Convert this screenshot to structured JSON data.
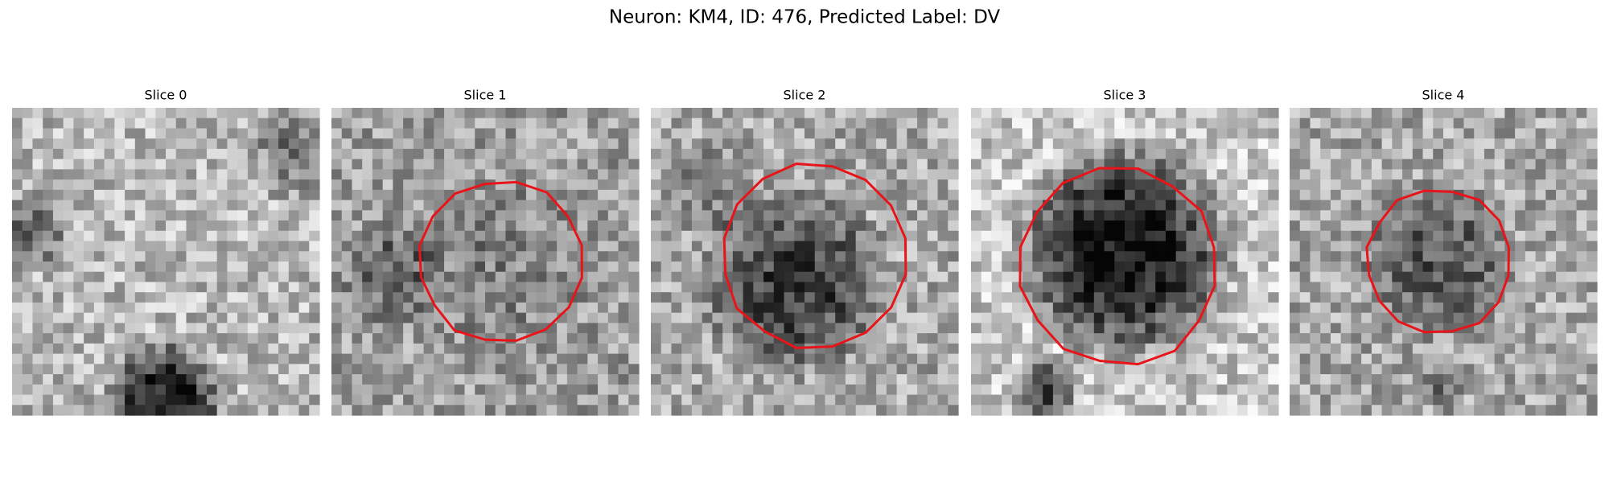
{
  "title": "Neuron: KM4, ID: 476, Predicted Label: DV",
  "panels": [
    {
      "title": "Slice 0"
    },
    {
      "title": "Slice 1"
    },
    {
      "title": "Slice 2"
    },
    {
      "title": "Slice 3"
    },
    {
      "title": "Slice 4"
    }
  ]
}
